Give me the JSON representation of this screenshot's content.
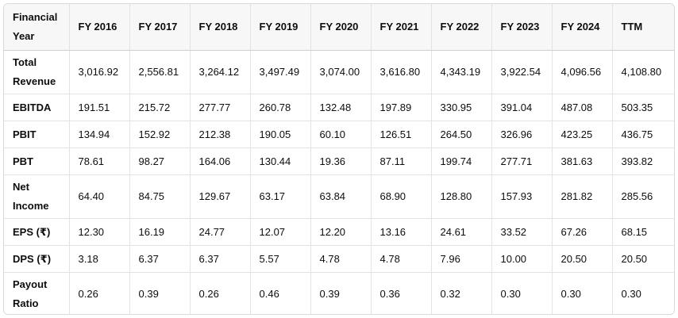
{
  "table": {
    "columns": [
      "Financial Year",
      "FY 2016",
      "FY 2017",
      "FY 2018",
      "FY 2019",
      "FY 2020",
      "FY 2021",
      "FY 2022",
      "FY 2023",
      "FY 2024",
      "TTM"
    ],
    "rows": [
      {
        "label": "Total Revenue",
        "values": [
          "3,016.92",
          "2,556.81",
          "3,264.12",
          "3,497.49",
          "3,074.00",
          "3,616.80",
          "4,343.19",
          "3,922.54",
          "4,096.56",
          "4,108.80"
        ]
      },
      {
        "label": "EBITDA",
        "values": [
          "191.51",
          "215.72",
          "277.77",
          "260.78",
          "132.48",
          "197.89",
          "330.95",
          "391.04",
          "487.08",
          "503.35"
        ]
      },
      {
        "label": "PBIT",
        "values": [
          "134.94",
          "152.92",
          "212.38",
          "190.05",
          "60.10",
          "126.51",
          "264.50",
          "326.96",
          "423.25",
          "436.75"
        ]
      },
      {
        "label": "PBT",
        "values": [
          "78.61",
          "98.27",
          "164.06",
          "130.44",
          "19.36",
          "87.11",
          "199.74",
          "277.71",
          "381.63",
          "393.82"
        ]
      },
      {
        "label": "Net Income",
        "values": [
          "64.40",
          "84.75",
          "129.67",
          "63.17",
          "63.84",
          "68.90",
          "128.80",
          "157.93",
          "281.82",
          "285.56"
        ]
      },
      {
        "label": "EPS (₹)",
        "values": [
          "12.30",
          "16.19",
          "24.77",
          "12.07",
          "12.20",
          "13.16",
          "24.61",
          "33.52",
          "67.26",
          "68.15"
        ]
      },
      {
        "label": "DPS (₹)",
        "values": [
          "3.18",
          "6.37",
          "6.37",
          "5.57",
          "4.78",
          "4.78",
          "7.96",
          "10.00",
          "20.50",
          "20.50"
        ]
      },
      {
        "label": "Payout Ratio",
        "values": [
          "0.26",
          "0.39",
          "0.26",
          "0.46",
          "0.39",
          "0.36",
          "0.32",
          "0.30",
          "0.30",
          "0.30"
        ]
      }
    ]
  }
}
